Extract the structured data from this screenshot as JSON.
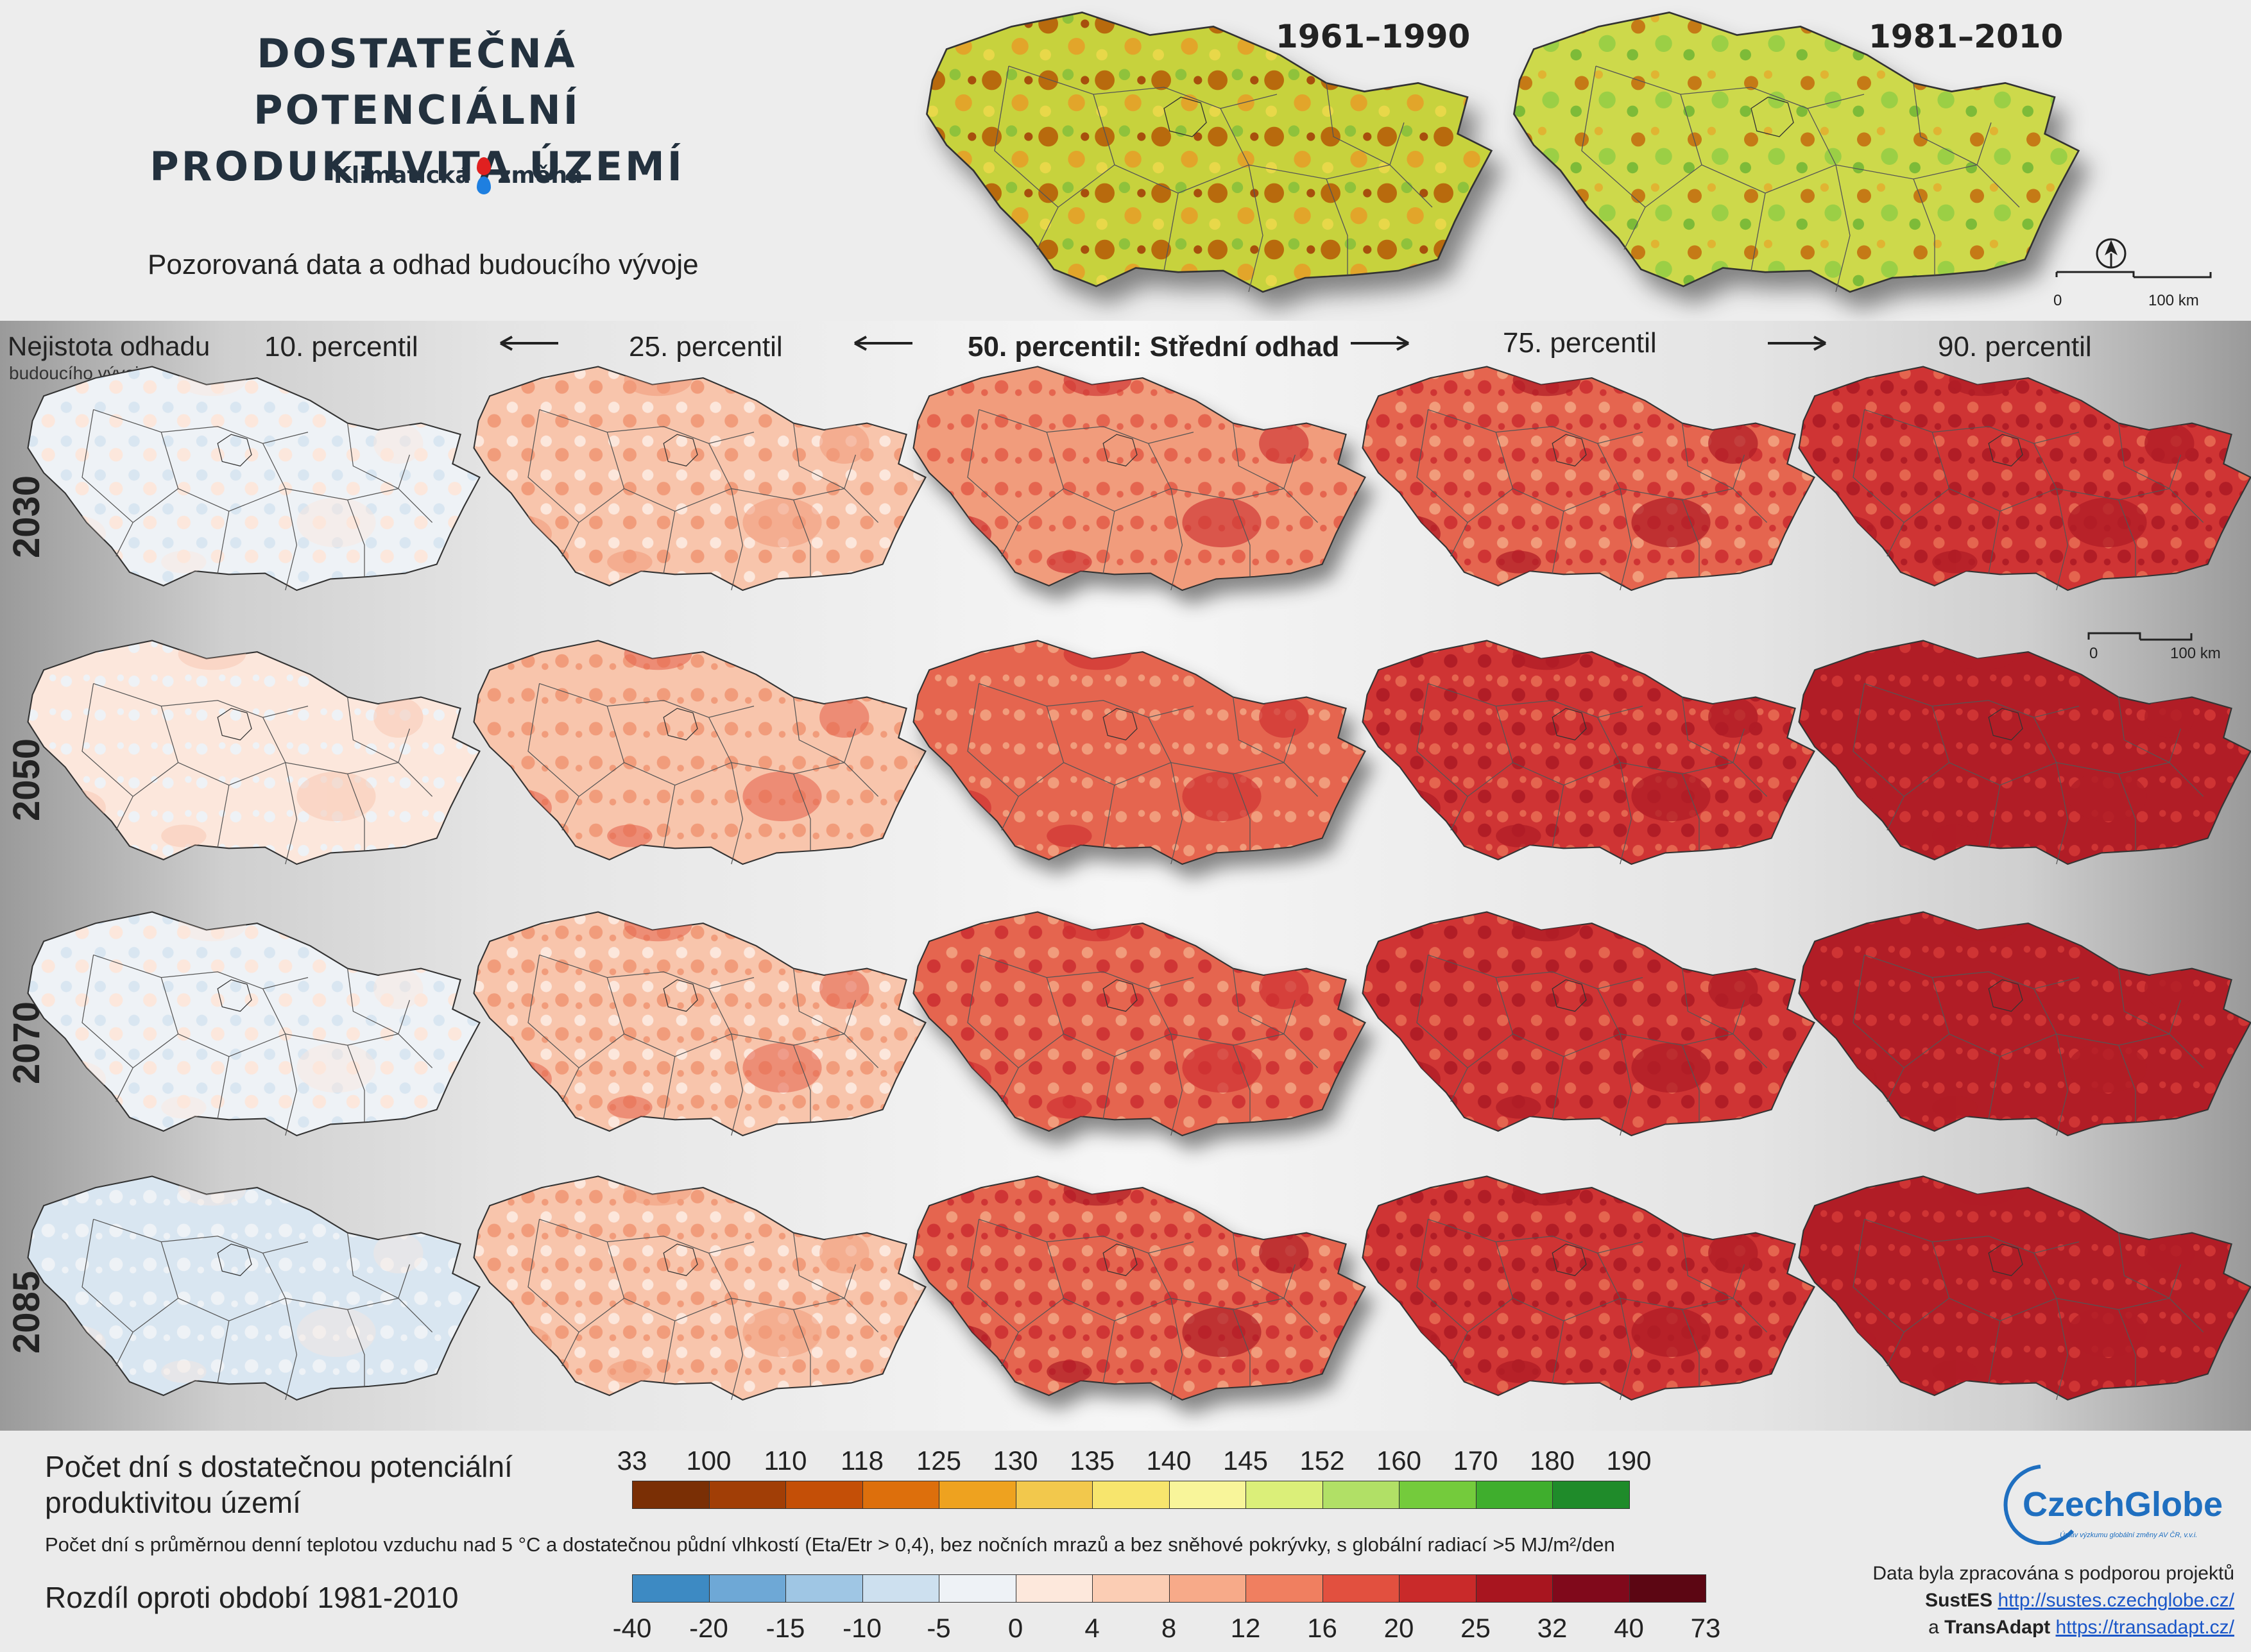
{
  "title": "DOSTATEČNÁ POTENCIÁLNÍ\nPRODUKTIVITA ÚZEMÍ",
  "brand": {
    "left": "Klimatická",
    "right": "změna"
  },
  "subtitle": "Pozorovaná data a odhad budoucího vývoje",
  "observed_periods": [
    "1961–1990",
    "1981–2010"
  ],
  "uncertainty_label": {
    "line1": "Nejistota odhadu",
    "line2": "budoucího vývoje"
  },
  "columns": [
    "10. percentil",
    "25. percentil",
    "50. percentil: Střední odhad",
    "75. percentil",
    "90. percentil"
  ],
  "rows": [
    "2030",
    "2050",
    "2070",
    "2085"
  ],
  "scale_bar": {
    "zero": "0",
    "distance": "100 km"
  },
  "map_levels": [
    [
      0.15,
      0.42,
      0.62,
      0.76,
      0.88
    ],
    [
      0.25,
      0.48,
      0.68,
      0.83,
      0.93
    ],
    [
      0.14,
      0.46,
      0.72,
      0.85,
      0.95
    ],
    [
      0.06,
      0.44,
      0.74,
      0.89,
      0.97
    ]
  ],
  "legend_absolute": {
    "title": "Počet dní s dostatečnou potenciální\nproduktivitou území",
    "ticks": [
      "33",
      "100",
      "110",
      "118",
      "125",
      "130",
      "135",
      "140",
      "145",
      "152",
      "160",
      "170",
      "180",
      "190"
    ],
    "colors": [
      "#7a2f05",
      "#a13e06",
      "#c44f07",
      "#dd6f0c",
      "#eea21f",
      "#f2c84c",
      "#f7e56d",
      "#f8f59a",
      "#dbef79",
      "#b1e066",
      "#74cb3c",
      "#3fae2d",
      "#1f8b2a"
    ]
  },
  "note": "Počet dní s průměrnou denní teplotou vzduchu nad 5 °C a dostatečnou půdní vlhkostí (Eta/Etr > 0,4), bez nočních mrazů a bez sněhové pokrývky, s globální radiací >5 MJ/m²/den",
  "legend_diff": {
    "title": "Rozdíl oproti období 1981-2010",
    "ticks": [
      "-40",
      "-20",
      "-15",
      "-10",
      "-5",
      "0",
      "4",
      "8",
      "12",
      "16",
      "20",
      "25",
      "32",
      "40",
      "73"
    ],
    "colors": [
      "#3d8ac3",
      "#6ea8d6",
      "#9fc6e4",
      "#cde0ef",
      "#eef2f6",
      "#fde8dc",
      "#fbcdb4",
      "#f7aa89",
      "#f07f60",
      "#e2503f",
      "#c92a2a",
      "#a8151f",
      "#80091b",
      "#5c0613"
    ]
  },
  "logo": {
    "name": "CzechGlobe",
    "tagline": "Ústav výzkumu globální změny AV ČR, v.v.i."
  },
  "credits": {
    "line1": "Data byla zpracována s podporou projektů",
    "p1_name": "SustES",
    "p1_url": "http://sustes.czechglobe.cz/",
    "and": "a",
    "p2_name": "TransAdapt",
    "p2_url": "https://transadapt.cz/"
  }
}
